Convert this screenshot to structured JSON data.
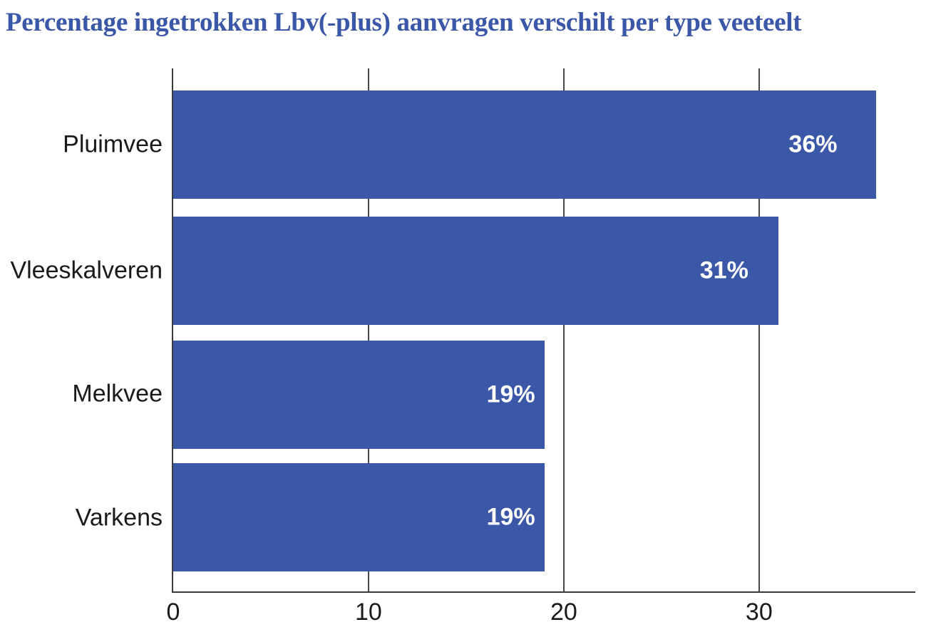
{
  "title": "Percentage ingetrokken Lbv(-plus) aanvragen verschilt per type veeteelt",
  "colors": {
    "title": "#3a57a8",
    "bar": "#3b57a8",
    "bar_label": "#ffffff",
    "axis": "#3a3a3a",
    "gridline": "#474747",
    "tick_text": "#1a1a1a"
  },
  "chart_data": {
    "type": "bar",
    "orientation": "horizontal",
    "title": "Percentage ingetrokken Lbv(-plus) aanvragen verschilt per type veeteelt",
    "categories": [
      "Pluimvee",
      "Vleeskalveren",
      "Melkvee",
      "Varkens"
    ],
    "values": [
      36,
      31,
      19,
      19
    ],
    "value_labels": [
      "36%",
      "31%",
      "19%",
      "19%"
    ],
    "xlabel": "",
    "ylabel": "",
    "xticks": [
      0,
      10,
      20,
      30
    ],
    "xtick_labels": [
      "0",
      "10",
      "20",
      "30"
    ],
    "xlim": [
      0,
      38
    ],
    "grid": "vertical-only",
    "legend": "none",
    "bar_color": "#3b57a8",
    "value_label_position": "inside-right"
  }
}
